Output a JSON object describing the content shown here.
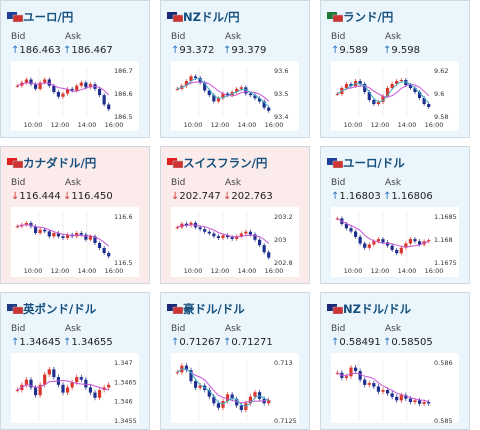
{
  "colors": {
    "up_bg": "#eaf5fc",
    "down_bg": "#fbebeb",
    "title": "#15507d",
    "up_arrow": "#2a72b8",
    "down_arrow": "#d23a3a",
    "ma_line": "#c855d6",
    "ma2_line": "#3fb0c8",
    "candle_up": "#d9362b",
    "candle_down": "#1f2f8f"
  },
  "labels": {
    "bid": "Bid",
    "ask": "Ask"
  },
  "cards": [
    {
      "name": "ユーロ/円",
      "flag": "eu-jp-flag",
      "dir": "up",
      "bid": "186.463",
      "ask": "186.467",
      "arrow": "↑",
      "yticks": [
        "186.7",
        "186.6",
        "186.5"
      ],
      "xticks": [
        "10:00",
        "12:00",
        "14:00",
        "16:00"
      ],
      "chart_data": {
        "type": "candlestick",
        "series": [
          186.62,
          186.64,
          186.66,
          186.63,
          186.6,
          186.64,
          186.66,
          186.62,
          186.58,
          186.55,
          186.57,
          186.6,
          186.59,
          186.62,
          186.64,
          186.61,
          186.63,
          186.6,
          186.56,
          186.5,
          186.47
        ],
        "ylim": [
          186.42,
          186.74
        ]
      }
    },
    {
      "name": "NZドル/円",
      "flag": "nz-jp-flag",
      "dir": "up",
      "bid": "93.372",
      "ask": "93.379",
      "arrow": "↑",
      "yticks": [
        "93.6",
        "93.5",
        "93.4"
      ],
      "xticks": [
        "10:00",
        "12:00",
        "14:00",
        "16:00"
      ],
      "chart_data": {
        "type": "candlestick",
        "series": [
          93.5,
          93.52,
          93.55,
          93.58,
          93.57,
          93.54,
          93.49,
          93.46,
          93.42,
          93.44,
          93.47,
          93.46,
          93.48,
          93.5,
          93.51,
          93.47,
          93.46,
          93.44,
          93.42,
          93.38,
          93.36
        ],
        "ylim": [
          93.32,
          93.64
        ]
      }
    },
    {
      "name": "ランド/円",
      "flag": "za-jp-flag",
      "dir": "up",
      "bid": "9.589",
      "ask": "9.598",
      "arrow": "↑",
      "yticks": [
        "9.62",
        "9.6",
        "9.58"
      ],
      "xticks": [
        "10:00",
        "12:00",
        "14:00",
        "16:00"
      ],
      "chart_data": {
        "type": "candlestick",
        "series": [
          9.598,
          9.604,
          9.608,
          9.606,
          9.611,
          9.608,
          9.6,
          9.592,
          9.588,
          9.59,
          9.596,
          9.604,
          9.608,
          9.611,
          9.612,
          9.607,
          9.604,
          9.6,
          9.594,
          9.588,
          9.585
        ],
        "ylim": [
          9.575,
          9.625
        ]
      }
    },
    {
      "name": "カナダドル/円",
      "flag": "ca-jp-flag",
      "dir": "down",
      "bid": "116.444",
      "ask": "116.450",
      "arrow": "↓",
      "yticks": [
        "116.6",
        "116.5"
      ],
      "xticks": [
        "10:00",
        "12:00",
        "14:00",
        "16:00"
      ],
      "chart_data": {
        "type": "candlestick",
        "series": [
          116.62,
          116.63,
          116.64,
          116.62,
          116.58,
          116.6,
          116.59,
          116.56,
          116.58,
          116.56,
          116.55,
          116.57,
          116.56,
          116.58,
          116.57,
          116.54,
          116.56,
          116.52,
          116.49,
          116.46,
          116.44
        ],
        "ylim": [
          116.4,
          116.7
        ]
      }
    },
    {
      "name": "スイスフラン/円",
      "flag": "ch-jp-flag",
      "dir": "down",
      "bid": "202.747",
      "ask": "202.763",
      "arrow": "↓",
      "yticks": [
        "203.2",
        "203",
        "202.8"
      ],
      "xticks": [
        "10:00",
        "12:00",
        "14:00",
        "16:00"
      ],
      "chart_data": {
        "type": "candlestick",
        "series": [
          203.1,
          203.14,
          203.12,
          203.15,
          203.1,
          203.08,
          203.05,
          203.03,
          203.0,
          202.98,
          203.01,
          202.99,
          202.97,
          203.0,
          203.03,
          203.05,
          203.02,
          202.96,
          202.9,
          202.82,
          202.76
        ],
        "ylim": [
          202.7,
          203.26
        ]
      }
    },
    {
      "name": "ユーロ/ドル",
      "flag": "eu-us-flag",
      "dir": "up",
      "bid": "1.16803",
      "ask": "1.16806",
      "arrow": "↑",
      "yticks": [
        "1.1685",
        "1.168",
        "1.1675"
      ],
      "xticks": [
        "10:00",
        "12:00",
        "14:00",
        "16:00"
      ],
      "chart_data": {
        "type": "candlestick",
        "series": [
          1.16905,
          1.1688,
          1.1686,
          1.16845,
          1.1682,
          1.1679,
          1.1677,
          1.16785,
          1.168,
          1.1681,
          1.16795,
          1.1678,
          1.1676,
          1.16745,
          1.1677,
          1.1679,
          1.1681,
          1.168,
          1.16785,
          1.168,
          1.16805
        ],
        "ylim": [
          1.167,
          1.1693
        ]
      }
    },
    {
      "name": "英ポンド/ドル",
      "flag": "gb-us-flag",
      "dir": "up",
      "bid": "1.34645",
      "ask": "1.34655",
      "arrow": "↑",
      "yticks": [
        "1.347",
        "1.3465",
        "1.346",
        "1.3455"
      ],
      "xticks": [],
      "chart_data": {
        "type": "candlestick",
        "series": [
          1.3462,
          1.3464,
          1.3466,
          1.3463,
          1.346,
          1.3464,
          1.3468,
          1.347,
          1.3467,
          1.3464,
          1.3461,
          1.3463,
          1.3465,
          1.3467,
          1.3466,
          1.3463,
          1.3461,
          1.3459,
          1.3462,
          1.3463,
          1.3464
        ],
        "ylim": [
          1.345,
          1.3474
        ]
      }
    },
    {
      "name": "豪ドル/ドル",
      "flag": "au-us-flag",
      "dir": "up",
      "bid": "0.71267",
      "ask": "0.71271",
      "arrow": "↑",
      "yticks": [
        "0.713",
        "0.7125"
      ],
      "xticks": [],
      "chart_data": {
        "type": "candlestick",
        "series": [
          0.7133,
          0.71345,
          0.71335,
          0.7131,
          0.71295,
          0.713,
          0.7129,
          0.71275,
          0.7126,
          0.7125,
          0.71265,
          0.7128,
          0.7127,
          0.71255,
          0.71245,
          0.7126,
          0.71275,
          0.71285,
          0.7127,
          0.7126,
          0.71267
        ],
        "ylim": [
          0.7122,
          0.7136
        ]
      }
    },
    {
      "name": "NZドル/ドル",
      "flag": "nz-us-flag",
      "dir": "up",
      "bid": "0.58491",
      "ask": "0.58505",
      "arrow": "↑",
      "yticks": [
        "0.586",
        "0.585"
      ],
      "xticks": [],
      "chart_data": {
        "type": "candlestick",
        "series": [
          0.5858,
          0.58565,
          0.5857,
          0.58595,
          0.58585,
          0.5856,
          0.58545,
          0.5855,
          0.5854,
          0.58525,
          0.5853,
          0.5852,
          0.5851,
          0.585,
          0.58515,
          0.58505,
          0.58495,
          0.585,
          0.5849,
          0.58495,
          0.58491
        ],
        "ylim": [
          0.5844,
          0.5862
        ]
      }
    }
  ]
}
